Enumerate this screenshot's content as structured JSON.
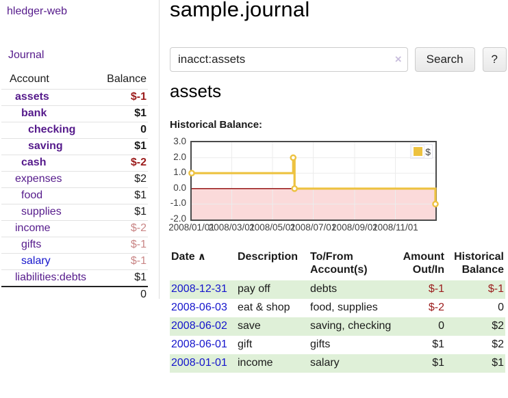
{
  "colors": {
    "accent_purple": "#551a8b",
    "link_blue": "#1414cc",
    "negative_red": "#9b1b1b",
    "negative_faded": "#c98585",
    "row_stripe_green": "#dff0d8",
    "chart_line_yellow": "#edc240",
    "chart_negative_fill": "#fbdada",
    "chart_zero_line": "#8b0000"
  },
  "sidebar": {
    "app_title": "hledger-web",
    "journal_label": "Journal",
    "accounts_header": {
      "account": "Account",
      "balance": "Balance"
    },
    "accounts": [
      {
        "name": "assets",
        "balance": "$-1"
      },
      {
        "name": "bank",
        "balance": "$1"
      },
      {
        "name": "checking",
        "balance": "0"
      },
      {
        "name": "saving",
        "balance": "$1"
      },
      {
        "name": "cash",
        "balance": "$-2"
      },
      {
        "name": "expenses",
        "balance": "$2"
      },
      {
        "name": "food",
        "balance": "$1"
      },
      {
        "name": "supplies",
        "balance": "$1"
      },
      {
        "name": "income",
        "balance": "$-2"
      },
      {
        "name": "gifts",
        "balance": "$-1"
      },
      {
        "name": "salary",
        "balance": "$-1"
      },
      {
        "name": "liabilities:debts",
        "balance": "$1"
      }
    ],
    "total": "0"
  },
  "main": {
    "title": "sample.journal",
    "search": {
      "value": "inacct:assets",
      "clear_glyph": "×",
      "button_label": "Search",
      "help_label": "?"
    },
    "account_heading": "assets"
  },
  "chart_data": {
    "type": "line",
    "title": "Historical Balance:",
    "xlabel": "",
    "ylabel": "",
    "xlim": [
      "2008-01-01",
      "2008-12-31"
    ],
    "ylim": [
      -2.0,
      3.0
    ],
    "yticks": [
      "3.0",
      "2.0",
      "1.0",
      "0.0",
      "-1.0",
      "-2.0"
    ],
    "xticks": [
      "2008/01/01",
      "2008/03/01",
      "2008/05/01",
      "2008/07/01",
      "2008/09/01",
      "2008/11/01"
    ],
    "grid": true,
    "legend": {
      "label": "$",
      "position": "top-right"
    },
    "series": [
      {
        "name": "$",
        "step": true,
        "points": [
          [
            "2008-01-01",
            1
          ],
          [
            "2008-06-01",
            2
          ],
          [
            "2008-06-03",
            0
          ],
          [
            "2008-12-31",
            -1
          ]
        ]
      }
    ]
  },
  "register": {
    "headers": {
      "date": "Date",
      "sort_glyph": "∧",
      "description": "Description",
      "account": "To/From Account(s)",
      "amount": "Amount Out/In",
      "balance": "Historical Balance"
    },
    "rows": [
      {
        "date": "2008-12-31",
        "description": "pay off",
        "account": "debts",
        "amount": "$-1",
        "balance": "$-1"
      },
      {
        "date": "2008-06-03",
        "description": "eat & shop",
        "account": "food, supplies",
        "amount": "$-2",
        "balance": "0"
      },
      {
        "date": "2008-06-02",
        "description": "save",
        "account": "saving, checking",
        "amount": "0",
        "balance": "$2"
      },
      {
        "date": "2008-06-01",
        "description": "gift",
        "account": "gifts",
        "amount": "$1",
        "balance": "$2"
      },
      {
        "date": "2008-01-01",
        "description": "income",
        "account": "salary",
        "amount": "$1",
        "balance": "$1"
      }
    ]
  }
}
